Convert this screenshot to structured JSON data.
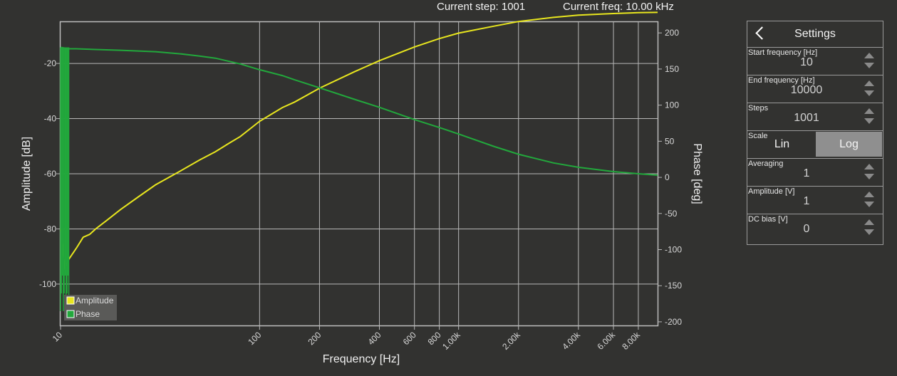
{
  "status": {
    "current_step": "Current step: 1001",
    "current_freq": "Current freq: 10.00 kHz"
  },
  "plot": {
    "x_label": "Frequency [Hz]",
    "y_left_label": "Amplitude [dB]",
    "y_right_label": "Phase [deg]",
    "x_ticks": [
      {
        "value": 10,
        "label": "10"
      },
      {
        "value": 100,
        "label": "100"
      },
      {
        "value": 200,
        "label": "200"
      },
      {
        "value": 400,
        "label": "400"
      },
      {
        "value": 600,
        "label": "600"
      },
      {
        "value": 800,
        "label": "800"
      },
      {
        "value": 1000,
        "label": "1.00k"
      },
      {
        "value": 2000,
        "label": "2.00k"
      },
      {
        "value": 4000,
        "label": "4.00k"
      },
      {
        "value": 6000,
        "label": "6.00k"
      },
      {
        "value": 8000,
        "label": "8.00k"
      }
    ],
    "y_left_ticks": [
      -20,
      -40,
      -60,
      -80,
      -100
    ],
    "y_right_ticks": [
      200,
      150,
      100,
      50,
      0,
      -50,
      -100,
      -150,
      -200
    ],
    "x_range": [
      10,
      10000
    ],
    "y_left_range": [
      -115,
      -5
    ],
    "y_right_range": [
      -205,
      215
    ],
    "x_scale": "log",
    "grid": true,
    "legend": {
      "position": "bottom-left",
      "items": [
        {
          "label": "Amplitude",
          "color": "#e8e61e"
        },
        {
          "label": "Phase",
          "color": "#22a83c"
        }
      ]
    }
  },
  "chart_data": {
    "type": "line",
    "x_scale": "log",
    "xlabel": "Frequency [Hz]",
    "series": [
      {
        "name": "Amplitude",
        "axis": "left",
        "color": "#e8e61e",
        "x": [
          10,
          10.5,
          11,
          12,
          13,
          14,
          15,
          17,
          20,
          25,
          30,
          40,
          50,
          60,
          70,
          80,
          100,
          130,
          150,
          200,
          300,
          400,
          600,
          800,
          1000,
          1500,
          2000,
          3000,
          4000,
          6000,
          8000,
          10000
        ],
        "y": [
          -80,
          -94,
          -91,
          -87,
          -83,
          -82,
          -80,
          -77,
          -73,
          -68,
          -64,
          -59,
          -55,
          -52,
          -49,
          -46.5,
          -41,
          -36,
          -34,
          -29,
          -23,
          -19,
          -14,
          -11,
          -9,
          -6.5,
          -4.8,
          -3.3,
          -2.5,
          -1.9,
          -1.6,
          -1.5
        ]
      },
      {
        "name": "Phase",
        "axis": "right",
        "color": "#22a83c",
        "x": [
          10,
          11,
          12,
          15,
          20,
          30,
          40,
          50,
          60,
          80,
          100,
          130,
          150,
          200,
          300,
          400,
          600,
          800,
          1000,
          1500,
          2000,
          3000,
          4000,
          6000,
          8000,
          10000
        ],
        "y": [
          180,
          178,
          178,
          177,
          176,
          174,
          171,
          168,
          165,
          157,
          149,
          141,
          135,
          124,
          108,
          97,
          80,
          69,
          60,
          43,
          32,
          20,
          14,
          8,
          5,
          3
        ],
        "noise_region_x": [
          10,
          11
        ]
      }
    ]
  },
  "settings": {
    "title": "Settings",
    "rows": [
      {
        "label": "Start frequency [Hz]",
        "value": "10"
      },
      {
        "label": "End frequency [Hz]",
        "value": "10000"
      },
      {
        "label": "Steps",
        "value": "1001"
      }
    ],
    "scale": {
      "label": "Scale",
      "options": [
        "Lin",
        "Log"
      ],
      "selected": "Log"
    },
    "rows2": [
      {
        "label": "Averaging",
        "value": "1"
      },
      {
        "label": "Amplitude [V]",
        "value": "1"
      },
      {
        "label": "DC bias [V]",
        "value": "0"
      }
    ]
  },
  "colors": {
    "background": "#323230",
    "grid": "#b8b8b8",
    "amplitude": "#e8e61e",
    "phase": "#22a83c"
  }
}
